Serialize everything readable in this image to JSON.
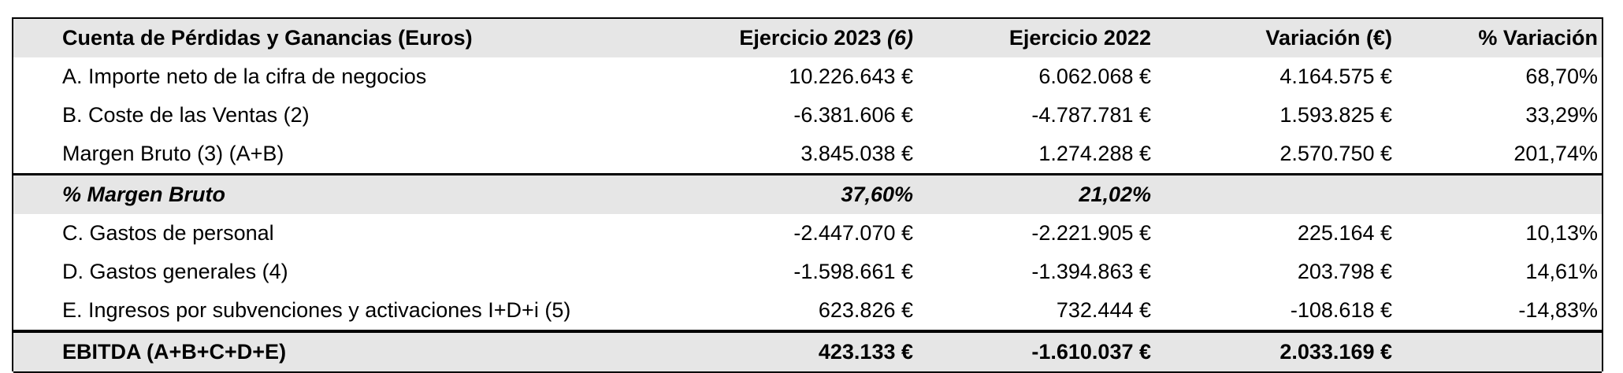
{
  "table": {
    "headers": [
      "Cuenta de Pérdidas y Ganancias (Euros)",
      "Ejercicio  2023",
      "Ejercicio 2022",
      "Variación (€)",
      "% Variación"
    ],
    "header_note_2023": "(6)",
    "rows": [
      [
        "A. Importe neto de la cifra de negocios",
        "10.226.643 €",
        "6.062.068 €",
        "4.164.575 €",
        "68,70%"
      ],
      [
        "B. Coste de las Ventas (2)",
        "-6.381.606 €",
        "-4.787.781 €",
        "1.593.825 €",
        "33,29%"
      ],
      [
        "Margen Bruto (3)  (A+B)",
        "3.845.038 €",
        "1.274.288 €",
        "2.570.750 €",
        "201,74%"
      ],
      [
        "% Margen Bruto",
        "37,60%",
        "21,02%",
        "",
        ""
      ],
      [
        "C. Gastos de personal",
        "-2.447.070 €",
        "-2.221.905 €",
        "225.164 €",
        "10,13%"
      ],
      [
        "D. Gastos generales (4)",
        "-1.598.661 €",
        "-1.394.863 €",
        "203.798 €",
        "14,61%"
      ],
      [
        "E. Ingresos por subvenciones y activaciones I+D+i (5)",
        "623.826 €",
        "732.444 €",
        "-108.618 €",
        "-14,83%"
      ],
      [
        "EBITDA (A+B+C+D+E)",
        "423.133 €",
        "-1.610.037 €",
        "2.033.169 €",
        ""
      ]
    ]
  }
}
